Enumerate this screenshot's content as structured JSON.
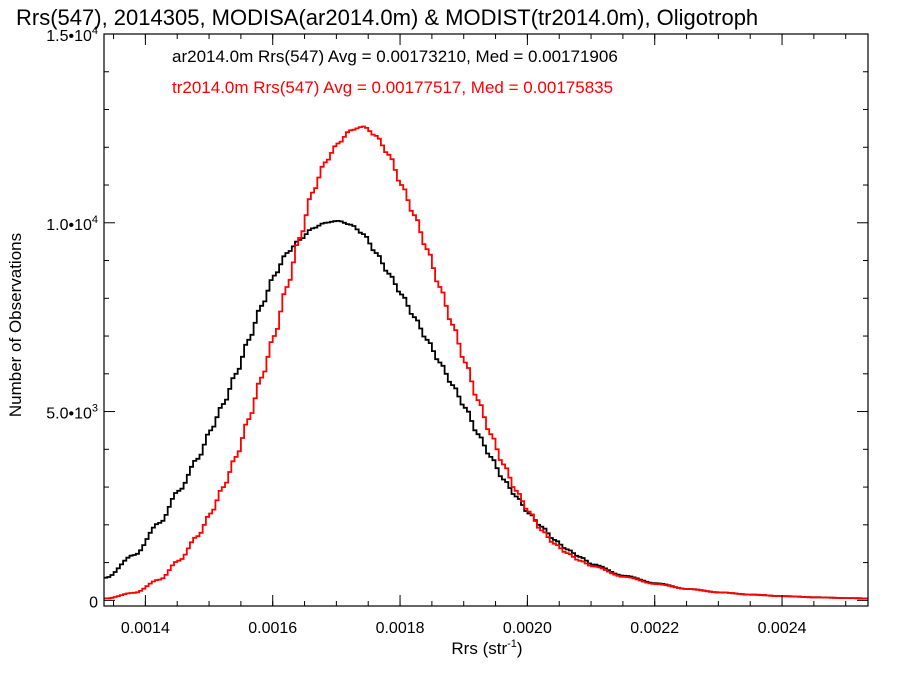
{
  "chart_data": {
    "type": "line",
    "title": "Rrs(547), 2014305, MODISA(ar2014.0m) & MODIST(tr2014.0m), Oligotroph",
    "xlabel_main": "Rrs (str",
    "xlabel_exp": "-1",
    "xlabel_tail": ")",
    "ylabel": "Number of Observations",
    "xlim": [
      0.001335,
      0.002535
    ],
    "ylim": [
      -150,
      15000
    ],
    "x_ticks": [
      {
        "value": 0.0014,
        "label": "0.0014"
      },
      {
        "value": 0.0016,
        "label": "0.0016"
      },
      {
        "value": 0.0018,
        "label": "0.0018"
      },
      {
        "value": 0.002,
        "label": "0.0020"
      },
      {
        "value": 0.0022,
        "label": "0.0022"
      },
      {
        "value": 0.0024,
        "label": "0.0024"
      }
    ],
    "x_minor_step": 5e-05,
    "y_ticks": [
      {
        "value": 0,
        "label": "0",
        "exp": ""
      },
      {
        "value": 5000,
        "label": "5.0•10",
        "exp": "3"
      },
      {
        "value": 10000,
        "label": "1.0•10",
        "exp": "4"
      },
      {
        "value": 15000,
        "label": "1.5•10",
        "exp": "4"
      }
    ],
    "y_minor_step": 1000,
    "legend": [
      "ar2014.0m Rrs(547) Avg = 0.00173210, Med = 0.00171906",
      "tr2014.0m Rrs(547) Avg = 0.00177517, Med = 0.00175835"
    ],
    "series": [
      {
        "color": "#000000",
        "x": [
          0.001335,
          0.00138,
          0.00142,
          0.00145,
          0.00148,
          0.0015,
          0.00152,
          0.00154,
          0.00156,
          0.00158,
          0.0016,
          0.00162,
          0.00164,
          0.00166,
          0.00168,
          0.0017,
          0.00172,
          0.00174,
          0.00176,
          0.00178,
          0.0018,
          0.00182,
          0.00184,
          0.00186,
          0.00188,
          0.0019,
          0.00192,
          0.00194,
          0.00196,
          0.00198,
          0.002,
          0.00202,
          0.00204,
          0.00206,
          0.00208,
          0.0021,
          0.00215,
          0.0022,
          0.00225,
          0.0023,
          0.00235,
          0.0024,
          0.00245,
          0.0025,
          0.002535
        ],
        "y": [
          600,
          1200,
          2050,
          2900,
          3750,
          4500,
          5200,
          6000,
          6900,
          7800,
          8600,
          9200,
          9550,
          9850,
          10000,
          10050,
          9950,
          9700,
          9200,
          8650,
          8100,
          7500,
          6900,
          6300,
          5700,
          5100,
          4400,
          3800,
          3200,
          2750,
          2300,
          1950,
          1600,
          1350,
          1150,
          950,
          650,
          450,
          300,
          210,
          150,
          110,
          80,
          60,
          50
        ]
      },
      {
        "color": "#ff0000",
        "x": [
          0.001335,
          0.00138,
          0.00142,
          0.00145,
          0.00148,
          0.0015,
          0.00152,
          0.00154,
          0.00156,
          0.00158,
          0.0016,
          0.00162,
          0.00164,
          0.00166,
          0.00168,
          0.0017,
          0.00172,
          0.00174,
          0.00176,
          0.00178,
          0.0018,
          0.00182,
          0.00184,
          0.00186,
          0.00188,
          0.0019,
          0.00192,
          0.00194,
          0.00196,
          0.00198,
          0.002,
          0.00202,
          0.00204,
          0.00206,
          0.00208,
          0.0021,
          0.00215,
          0.0022,
          0.00225,
          0.0023,
          0.00235,
          0.0024,
          0.00245,
          0.0025,
          0.002535
        ],
        "y": [
          50,
          200,
          550,
          1050,
          1700,
          2300,
          3000,
          3800,
          4800,
          5900,
          7000,
          8300,
          9600,
          10800,
          11600,
          12100,
          12450,
          12550,
          12300,
          11800,
          11000,
          10200,
          9300,
          8300,
          7300,
          6300,
          5300,
          4400,
          3600,
          2900,
          2350,
          1850,
          1500,
          1250,
          1050,
          900,
          620,
          430,
          300,
          210,
          150,
          110,
          80,
          60,
          50
        ]
      }
    ]
  }
}
